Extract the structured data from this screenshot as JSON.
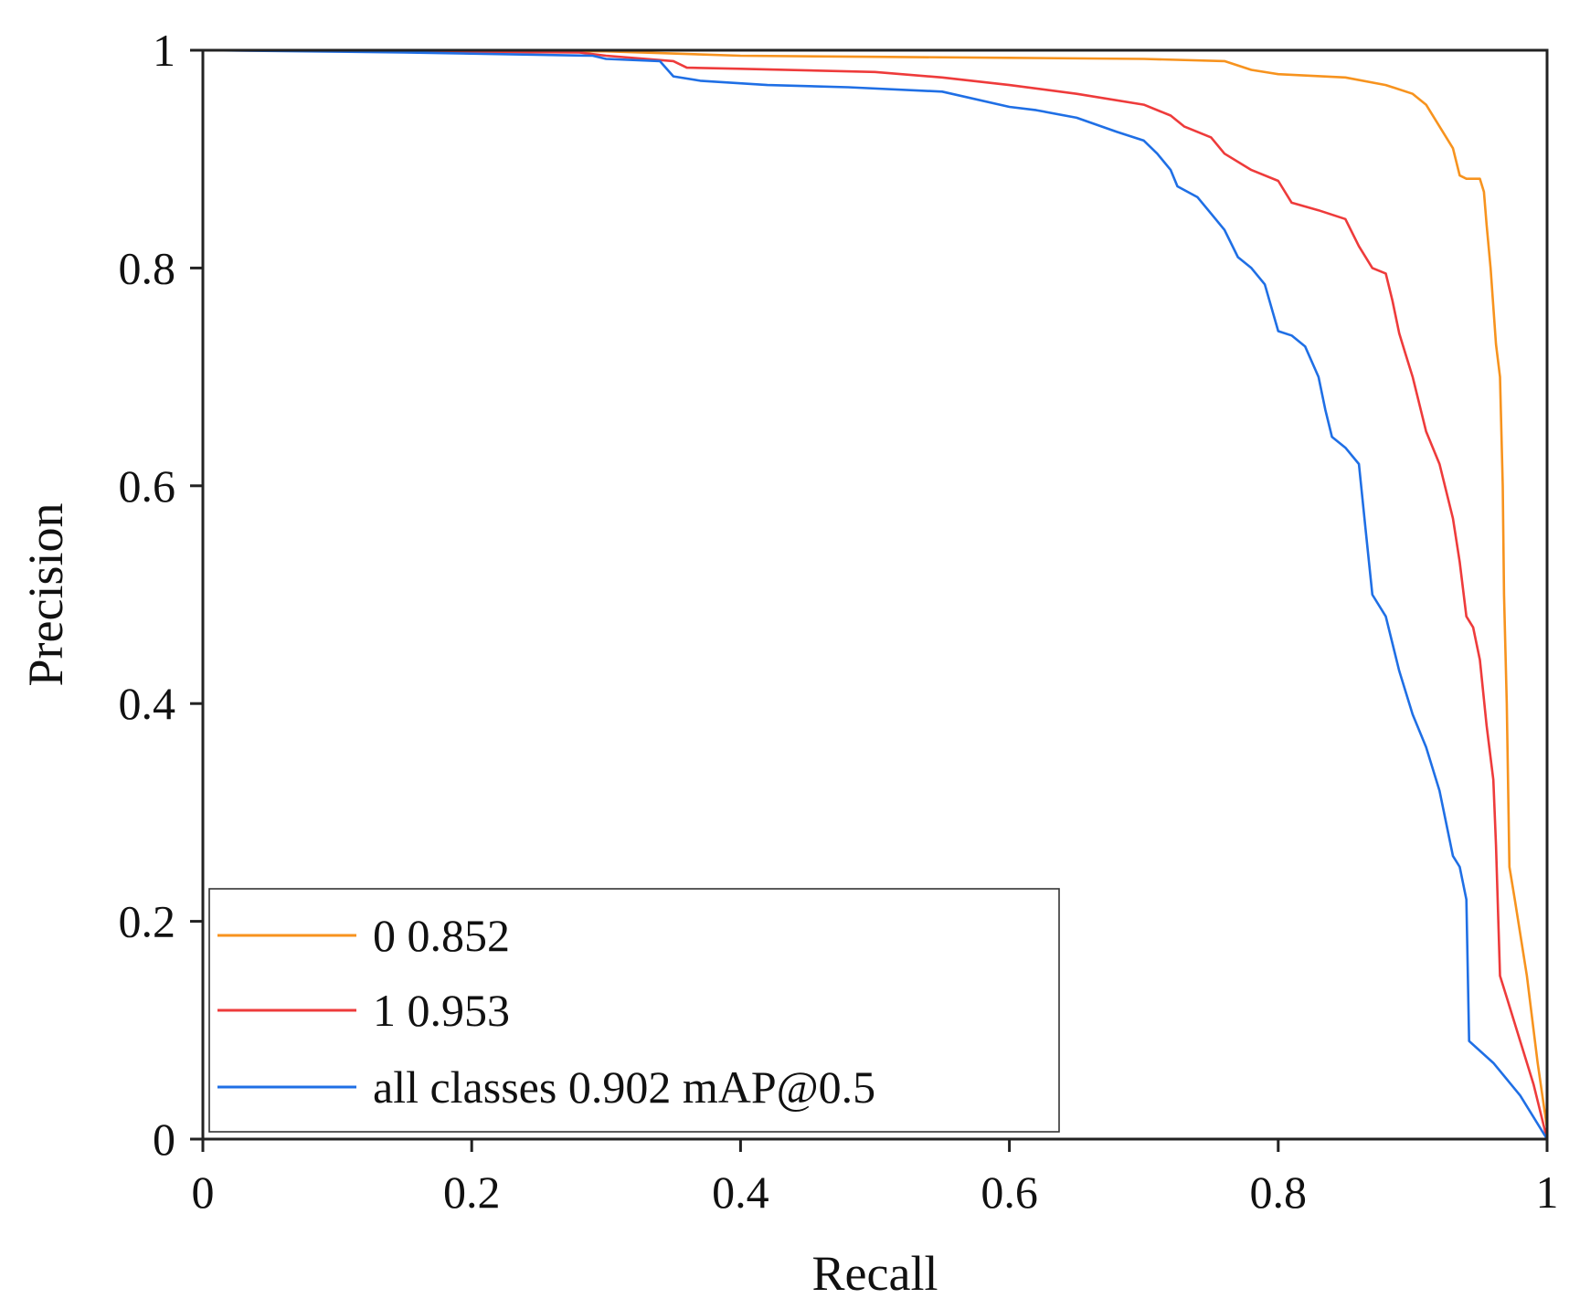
{
  "chart_data": {
    "type": "line",
    "title": "",
    "xlabel": "Recall",
    "ylabel": "Precision",
    "xlim": [
      0,
      1
    ],
    "ylim": [
      0,
      1
    ],
    "grid": false,
    "legend_position": "bottom-left",
    "x_ticks": [
      {
        "value": 0,
        "label": "0"
      },
      {
        "value": 0.2,
        "label": "0.2"
      },
      {
        "value": 0.4,
        "label": "0.4"
      },
      {
        "value": 0.6,
        "label": "0.6"
      },
      {
        "value": 0.8,
        "label": "0.8"
      },
      {
        "value": 1,
        "label": "1"
      }
    ],
    "y_ticks": [
      {
        "value": 0,
        "label": "0"
      },
      {
        "value": 0.2,
        "label": "0.2"
      },
      {
        "value": 0.4,
        "label": "0.4"
      },
      {
        "value": 0.6,
        "label": "0.6"
      },
      {
        "value": 0.8,
        "label": "0.8"
      },
      {
        "value": 1,
        "label": "1"
      }
    ],
    "series": [
      {
        "name": "0 0.852",
        "color": "#f7931e",
        "points": [
          [
            0,
            1
          ],
          [
            0.3,
            0.999
          ],
          [
            0.4,
            0.995
          ],
          [
            0.5,
            0.994
          ],
          [
            0.6,
            0.993
          ],
          [
            0.7,
            0.992
          ],
          [
            0.76,
            0.99
          ],
          [
            0.78,
            0.982
          ],
          [
            0.8,
            0.978
          ],
          [
            0.85,
            0.975
          ],
          [
            0.88,
            0.968
          ],
          [
            0.9,
            0.96
          ],
          [
            0.91,
            0.95
          ],
          [
            0.92,
            0.93
          ],
          [
            0.93,
            0.91
          ],
          [
            0.935,
            0.885
          ],
          [
            0.94,
            0.882
          ],
          [
            0.95,
            0.882
          ],
          [
            0.953,
            0.87
          ],
          [
            0.955,
            0.84
          ],
          [
            0.958,
            0.8
          ],
          [
            0.962,
            0.73
          ],
          [
            0.965,
            0.7
          ],
          [
            0.967,
            0.6
          ],
          [
            0.968,
            0.5
          ],
          [
            0.97,
            0.4
          ],
          [
            0.972,
            0.25
          ],
          [
            0.976,
            0.22
          ],
          [
            0.985,
            0.15
          ],
          [
            0.993,
            0.07
          ],
          [
            1,
            0.01
          ]
        ]
      },
      {
        "name": "1 0.953",
        "color": "#ee3b3b",
        "points": [
          [
            0,
            1
          ],
          [
            0.28,
            0.998
          ],
          [
            0.3,
            0.995
          ],
          [
            0.35,
            0.99
          ],
          [
            0.36,
            0.984
          ],
          [
            0.4,
            0.983
          ],
          [
            0.5,
            0.98
          ],
          [
            0.55,
            0.975
          ],
          [
            0.6,
            0.968
          ],
          [
            0.65,
            0.96
          ],
          [
            0.7,
            0.95
          ],
          [
            0.72,
            0.94
          ],
          [
            0.73,
            0.93
          ],
          [
            0.75,
            0.92
          ],
          [
            0.76,
            0.905
          ],
          [
            0.78,
            0.89
          ],
          [
            0.8,
            0.88
          ],
          [
            0.81,
            0.86
          ],
          [
            0.83,
            0.853
          ],
          [
            0.85,
            0.845
          ],
          [
            0.86,
            0.82
          ],
          [
            0.87,
            0.8
          ],
          [
            0.88,
            0.795
          ],
          [
            0.885,
            0.77
          ],
          [
            0.89,
            0.74
          ],
          [
            0.895,
            0.72
          ],
          [
            0.9,
            0.7
          ],
          [
            0.91,
            0.65
          ],
          [
            0.92,
            0.62
          ],
          [
            0.93,
            0.57
          ],
          [
            0.935,
            0.53
          ],
          [
            0.94,
            0.48
          ],
          [
            0.945,
            0.47
          ],
          [
            0.95,
            0.44
          ],
          [
            0.955,
            0.38
          ],
          [
            0.96,
            0.33
          ],
          [
            0.962,
            0.27
          ],
          [
            0.965,
            0.15
          ],
          [
            0.97,
            0.13
          ],
          [
            0.98,
            0.09
          ],
          [
            0.99,
            0.05
          ],
          [
            1,
            0
          ]
        ]
      },
      {
        "name": "all classes 0.902 mAP@0.5",
        "color": "#1f6fe5",
        "points": [
          [
            0,
            1
          ],
          [
            0.15,
            0.998
          ],
          [
            0.29,
            0.995
          ],
          [
            0.3,
            0.992
          ],
          [
            0.34,
            0.99
          ],
          [
            0.35,
            0.976
          ],
          [
            0.37,
            0.972
          ],
          [
            0.42,
            0.968
          ],
          [
            0.48,
            0.966
          ],
          [
            0.55,
            0.962
          ],
          [
            0.6,
            0.948
          ],
          [
            0.62,
            0.945
          ],
          [
            0.65,
            0.938
          ],
          [
            0.68,
            0.925
          ],
          [
            0.7,
            0.917
          ],
          [
            0.71,
            0.905
          ],
          [
            0.72,
            0.89
          ],
          [
            0.725,
            0.875
          ],
          [
            0.74,
            0.865
          ],
          [
            0.75,
            0.85
          ],
          [
            0.76,
            0.835
          ],
          [
            0.77,
            0.81
          ],
          [
            0.78,
            0.8
          ],
          [
            0.79,
            0.785
          ],
          [
            0.8,
            0.742
          ],
          [
            0.81,
            0.738
          ],
          [
            0.82,
            0.728
          ],
          [
            0.83,
            0.7
          ],
          [
            0.835,
            0.67
          ],
          [
            0.84,
            0.645
          ],
          [
            0.85,
            0.635
          ],
          [
            0.86,
            0.62
          ],
          [
            0.865,
            0.56
          ],
          [
            0.87,
            0.5
          ],
          [
            0.88,
            0.48
          ],
          [
            0.89,
            0.43
          ],
          [
            0.9,
            0.39
          ],
          [
            0.91,
            0.36
          ],
          [
            0.92,
            0.32
          ],
          [
            0.93,
            0.26
          ],
          [
            0.935,
            0.25
          ],
          [
            0.94,
            0.22
          ],
          [
            0.942,
            0.09
          ],
          [
            0.96,
            0.07
          ],
          [
            0.98,
            0.04
          ],
          [
            1,
            0
          ]
        ]
      }
    ]
  }
}
